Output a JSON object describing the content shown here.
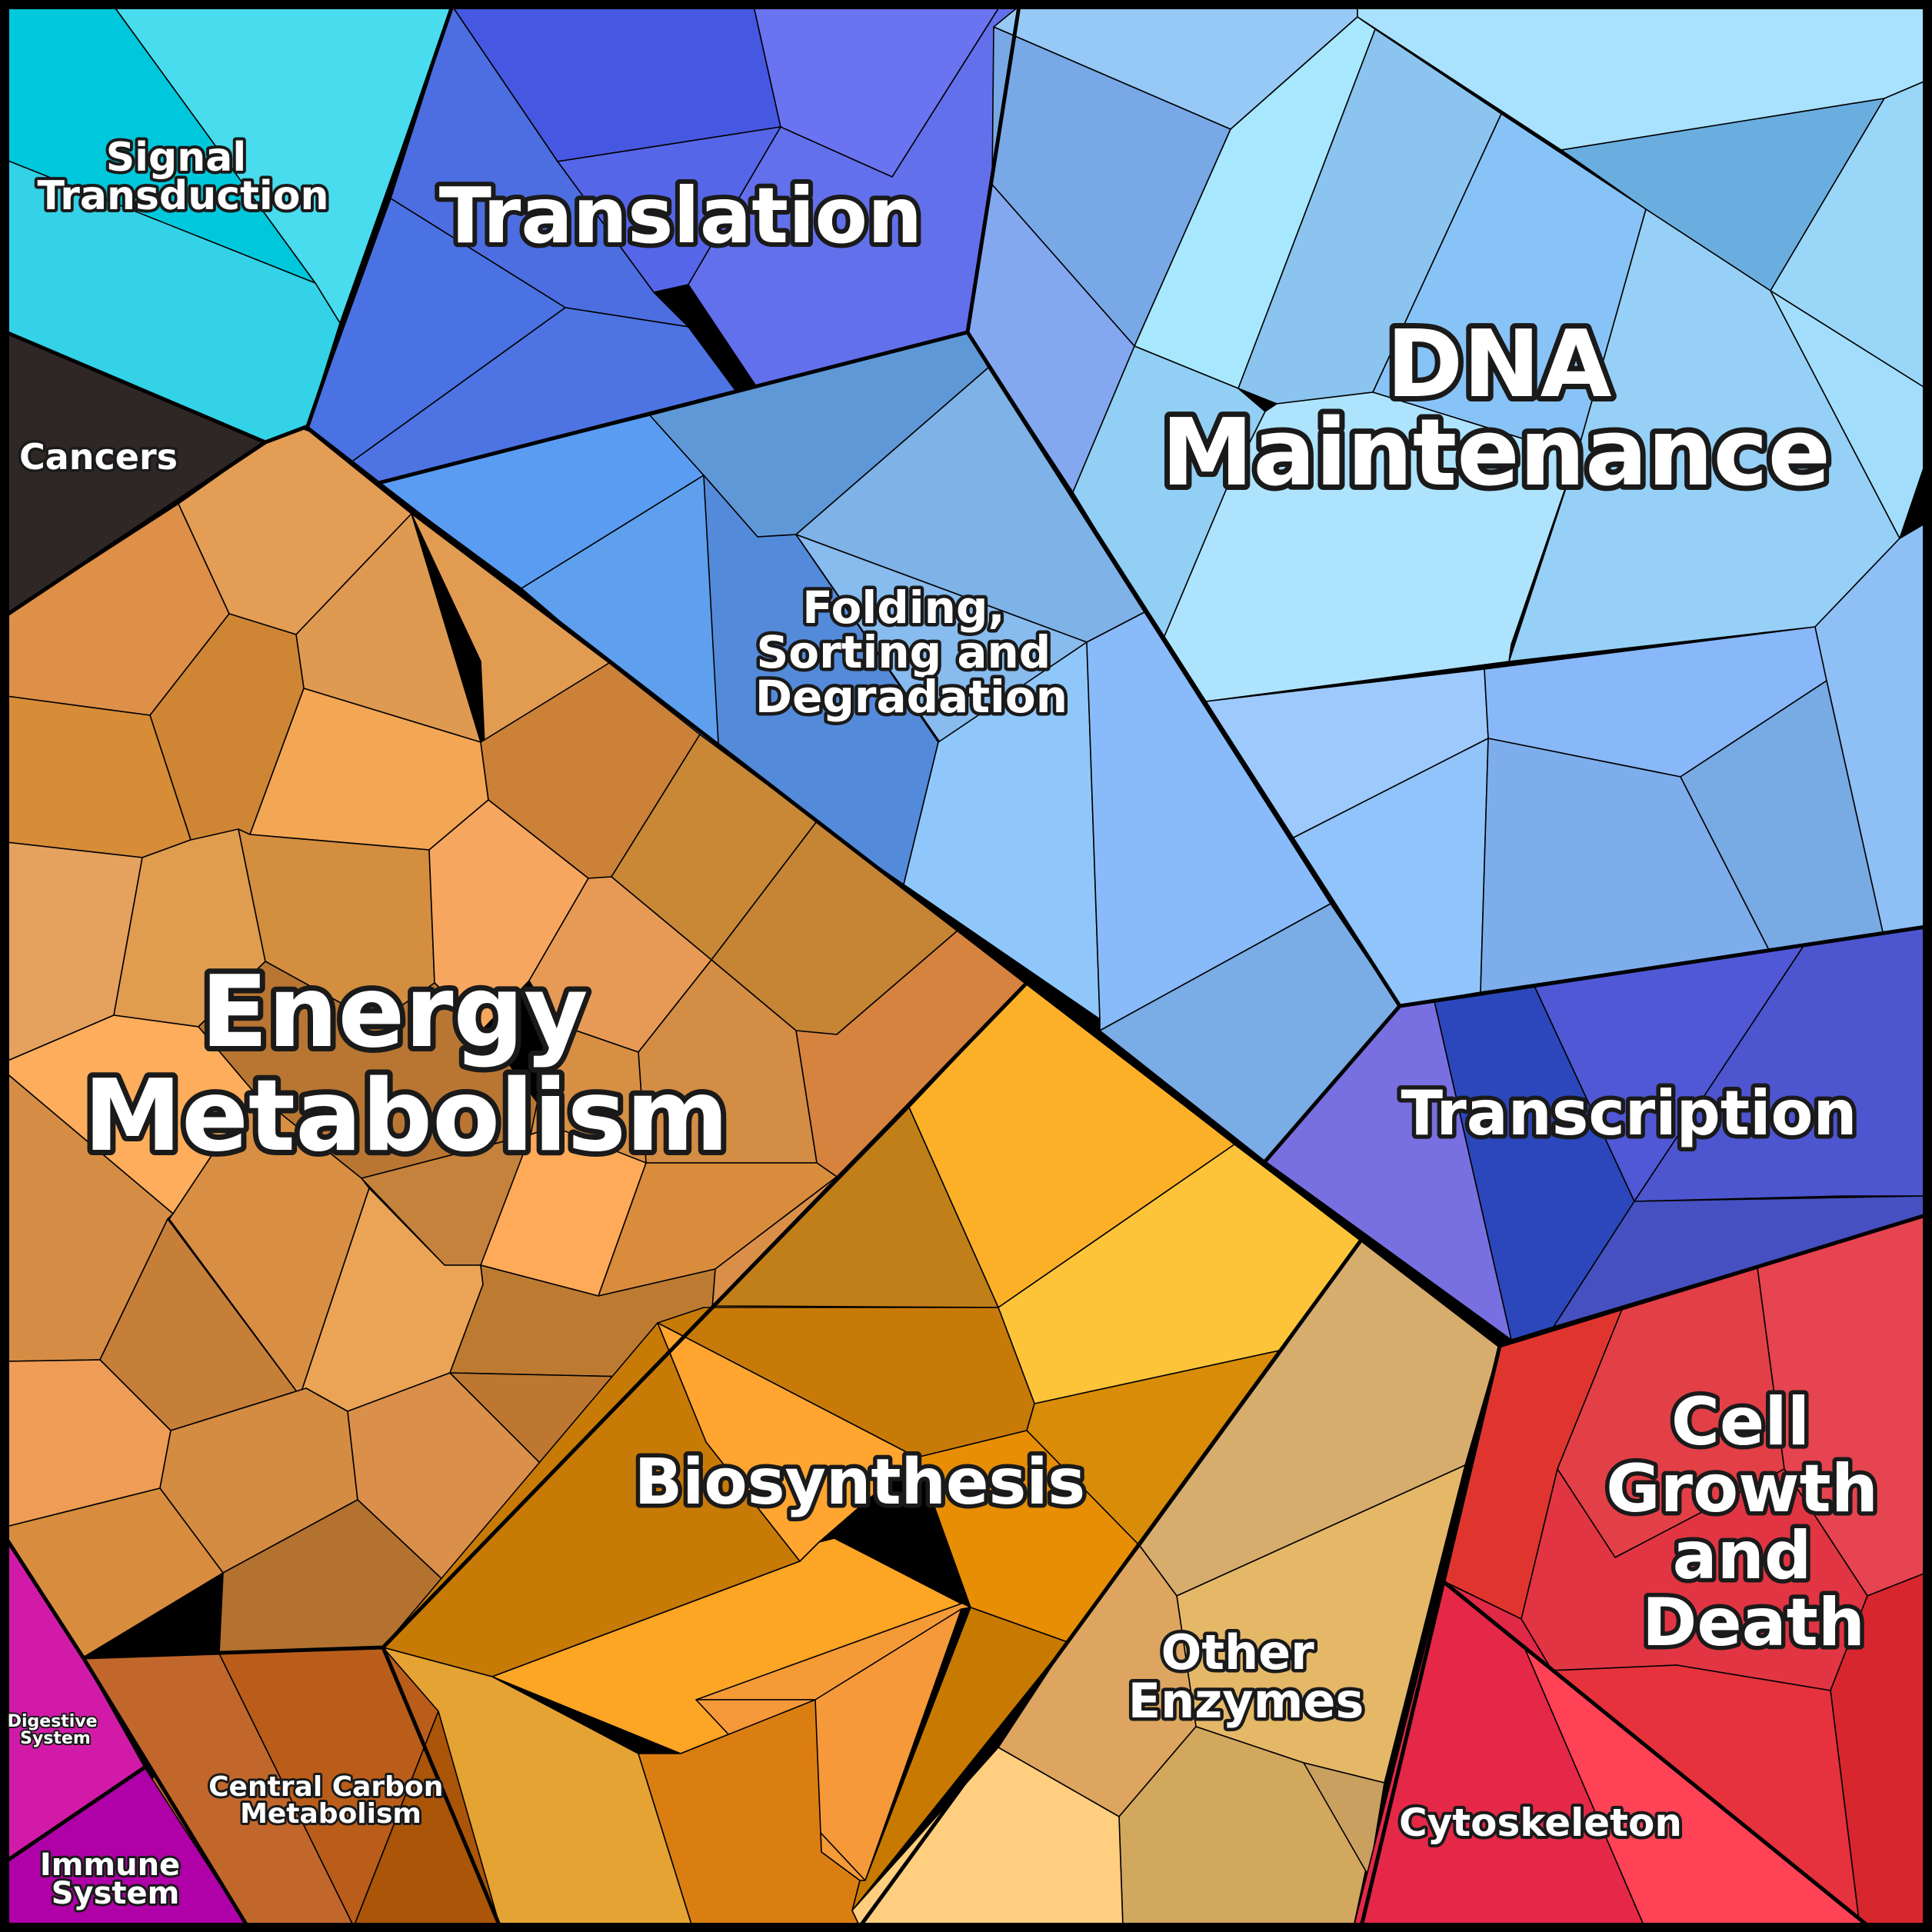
{
  "labels": {
    "signal_transduction": [
      "Signal",
      "Transduction"
    ],
    "translation": [
      "Translation"
    ],
    "dna_maintenance": [
      "DNA",
      "Maintenance"
    ],
    "cancers": [
      "Cancers"
    ],
    "folding": [
      "Folding,",
      "Sorting and",
      "Degradation"
    ],
    "energy_metabolism": [
      "Energy",
      "Metabolism"
    ],
    "transcription": [
      "Transcription"
    ],
    "biosynthesis": [
      "Biosynthesis"
    ],
    "cell_growth": [
      "Cell",
      "Growth",
      "and",
      "Death"
    ],
    "other_enzymes": [
      "Other",
      "Enzymes"
    ],
    "cytoskeleton": [
      "Cytoskeleton"
    ],
    "central_carbon": [
      "Central Carbon",
      "Metabolism"
    ],
    "digestive": [
      "Digestive",
      "System"
    ],
    "immune": [
      "Immune",
      "System"
    ]
  },
  "colors": {
    "signal_transduction": "#2fd0e4",
    "translation": "#4c6fe0",
    "dna_maintenance": "#9fdcff",
    "cancers": "#2e2726",
    "folding": "#5f96d6",
    "energy_metabolism": "#d98e42",
    "transcription": "#4a52cc",
    "biosynthesis": "#e99a1c",
    "cell_growth": "#e2384a",
    "other_enzymes": "#dba962",
    "cytoskeleton": "#f04257",
    "central_carbon": "#b85a1d",
    "digestive": "#d11ba8",
    "immune": "#b000a8",
    "background": "#000000"
  }
}
